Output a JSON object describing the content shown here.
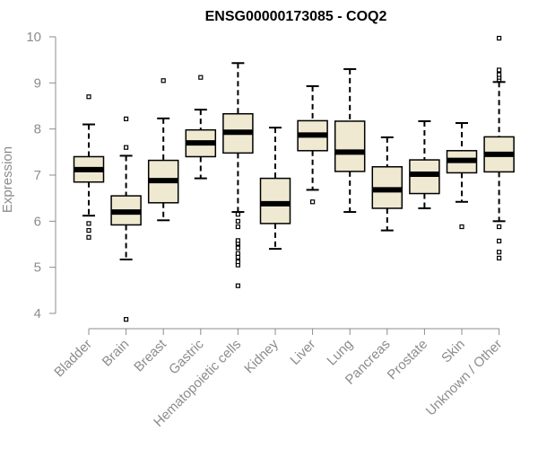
{
  "chart_data": {
    "type": "boxplot",
    "title": "ENSG00000173085 - COQ2",
    "xlabel": "",
    "ylabel": "Expression",
    "ylim": [
      3.8,
      10.1
    ],
    "yticks": [
      4,
      5,
      6,
      7,
      8,
      9,
      10
    ],
    "grid": false,
    "colors": {
      "box_fill": "#efe9d1",
      "stroke": "#000000",
      "axis": "#8c8c8c"
    },
    "categories": [
      "Bladder",
      "Brain",
      "Breast",
      "Gastric",
      "Hematopoietic cells",
      "Kidney",
      "Liver",
      "Lung",
      "Pancreas",
      "Prostate",
      "Skin",
      "Unknown / Other"
    ],
    "boxes": [
      {
        "category": "Bladder",
        "whisker_low": 6.12,
        "q1": 6.85,
        "median": 7.12,
        "q3": 7.4,
        "whisker_high": 8.1,
        "outliers": [
          5.65,
          5.8,
          5.95,
          8.7
        ]
      },
      {
        "category": "Brain",
        "whisker_low": 5.17,
        "q1": 5.92,
        "median": 6.2,
        "q3": 6.55,
        "whisker_high": 7.42,
        "outliers": [
          3.87,
          7.6,
          8.22
        ]
      },
      {
        "category": "Breast",
        "whisker_low": 6.02,
        "q1": 6.4,
        "median": 6.88,
        "q3": 7.32,
        "whisker_high": 8.23,
        "outliers": [
          9.05
        ]
      },
      {
        "category": "Gastric",
        "whisker_low": 6.93,
        "q1": 7.4,
        "median": 7.7,
        "q3": 7.98,
        "whisker_high": 8.42,
        "outliers": [
          9.12
        ]
      },
      {
        "category": "Hematopoietic cells",
        "whisker_low": 6.2,
        "q1": 7.48,
        "median": 7.93,
        "q3": 8.33,
        "whisker_high": 9.43,
        "outliers": [
          4.6,
          5.05,
          5.12,
          5.22,
          5.3,
          5.42,
          5.52,
          5.58,
          5.88,
          6.0,
          6.15
        ]
      },
      {
        "category": "Kidney",
        "whisker_low": 5.4,
        "q1": 5.95,
        "median": 6.38,
        "q3": 6.93,
        "whisker_high": 8.03,
        "outliers": []
      },
      {
        "category": "Liver",
        "whisker_low": 6.68,
        "q1": 7.53,
        "median": 7.87,
        "q3": 8.18,
        "whisker_high": 8.93,
        "outliers": [
          6.42
        ]
      },
      {
        "category": "Lung",
        "whisker_low": 6.2,
        "q1": 7.08,
        "median": 7.5,
        "q3": 8.17,
        "whisker_high": 9.3,
        "outliers": []
      },
      {
        "category": "Pancreas",
        "whisker_low": 5.8,
        "q1": 6.28,
        "median": 6.68,
        "q3": 7.18,
        "whisker_high": 7.82,
        "outliers": []
      },
      {
        "category": "Prostate",
        "whisker_low": 6.28,
        "q1": 6.6,
        "median": 7.02,
        "q3": 7.33,
        "whisker_high": 8.17,
        "outliers": []
      },
      {
        "category": "Skin",
        "whisker_low": 6.42,
        "q1": 7.05,
        "median": 7.32,
        "q3": 7.53,
        "whisker_high": 8.13,
        "outliers": [
          5.88
        ]
      },
      {
        "category": "Unknown / Other",
        "whisker_low": 6.0,
        "q1": 7.07,
        "median": 7.45,
        "q3": 7.83,
        "whisker_high": 9.02,
        "outliers": [
          5.2,
          5.33,
          5.57,
          5.88,
          9.07,
          9.12,
          9.18,
          9.28,
          9.97
        ]
      }
    ]
  }
}
